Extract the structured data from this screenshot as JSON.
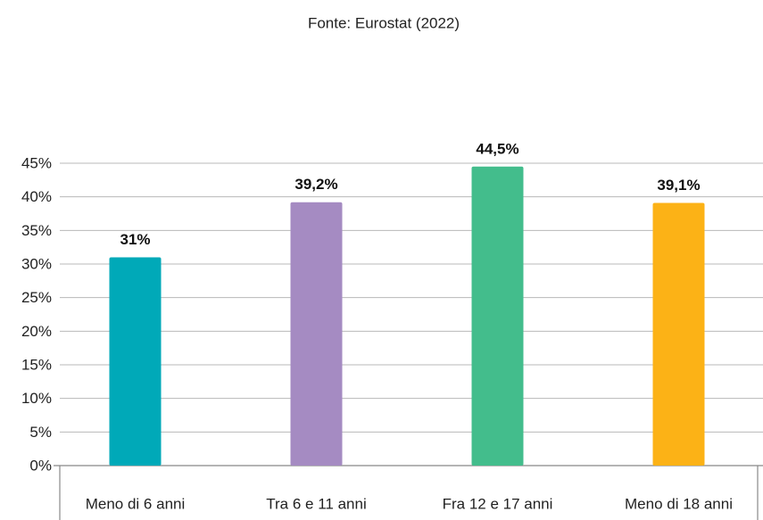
{
  "chart_data": {
    "type": "bar",
    "title": "Fonte: Eurostat (2022)",
    "categories": [
      "Meno di 6 anni",
      "Tra 6 e 11 anni",
      "Fra 12 e 17 anni",
      "Meno di 18 anni"
    ],
    "values": [
      31,
      39.2,
      44.5,
      39.1
    ],
    "value_labels": [
      "31%",
      "39,2%",
      "44,5%",
      "39,1%"
    ],
    "colors": [
      "#00a9b8",
      "#a58bc2",
      "#43bd8c",
      "#fcb216"
    ],
    "ylim": [
      0,
      45
    ],
    "yticks": [
      {
        "value": 0,
        "label": "0%"
      },
      {
        "value": 5,
        "label": "5%"
      },
      {
        "value": 10,
        "label": "10%"
      },
      {
        "value": 15,
        "label": "15%"
      },
      {
        "value": 20,
        "label": "20%"
      },
      {
        "value": 25,
        "label": "25%"
      },
      {
        "value": 30,
        "label": "30%"
      },
      {
        "value": 35,
        "label": "35%"
      },
      {
        "value": 40,
        "label": "40%"
      },
      {
        "value": 45,
        "label": "45%"
      }
    ],
    "grid": true
  }
}
